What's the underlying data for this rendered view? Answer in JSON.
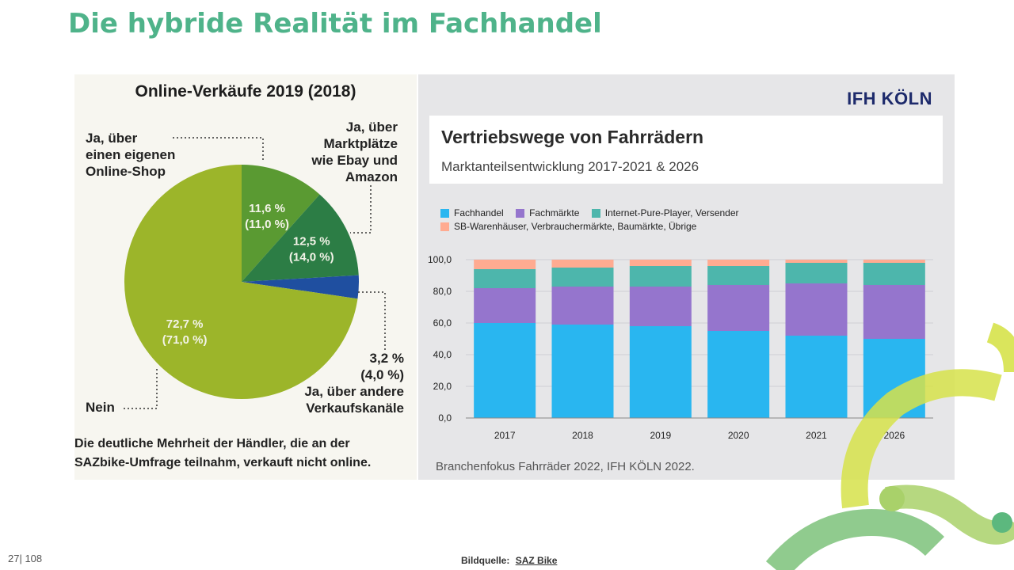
{
  "slide": {
    "title": "Die hybride Realität im Fachhandel",
    "page_number": "27| 108",
    "source_label": "Bildquelle:",
    "source_link": "SAZ Bike"
  },
  "chart_data": [
    {
      "type": "pie",
      "title": "Online-Verkäufe 2019 (2018)",
      "slices": [
        {
          "label": "Nein",
          "value_2019": 72.7,
          "value_2018": 71.0,
          "pct_text": "72,7 %",
          "prev_text": "(71,0 %)",
          "color": "#9cb52a"
        },
        {
          "label": "Ja, über einen eigenen Online-Shop",
          "value_2019": 11.6,
          "value_2018": 11.0,
          "pct_text": "11,6 %",
          "prev_text": "(11,0 %)",
          "color": "#5a9a32"
        },
        {
          "label": "Ja, über Marktplätze wie Ebay und Amazon",
          "value_2019": 12.5,
          "value_2018": 14.0,
          "pct_text": "12,5 %",
          "prev_text": "(14,0 %)",
          "color": "#2c7d45"
        },
        {
          "label": "Ja, über andere Verkaufskanäle",
          "value_2019": 3.2,
          "value_2018": 4.0,
          "pct_text": "3,2 %",
          "prev_text": "(4,0 %)",
          "color": "#1f4fa0"
        }
      ],
      "labels": {
        "shop": [
          "Ja, über",
          "einen eigenen",
          "Online-Shop"
        ],
        "market": [
          "Ja, über",
          "Marktplätze",
          "wie Ebay und",
          "Amazon"
        ],
        "other": [
          "3,2 %",
          "(4,0 %)",
          "Ja, über andere",
          "Verkaufskanäle"
        ],
        "no": "Nein"
      },
      "caption": [
        "Die deutliche Mehrheit der Händler, die an der",
        "SAZbike-Umfrage teilnahm, verkauft nicht online."
      ]
    },
    {
      "type": "bar",
      "stacked": true,
      "brand": "IFH KÖLN",
      "title": "Vertriebswege von Fahrrädern",
      "subtitle": "Marktanteilsentwicklung 2017-2021 & 2026",
      "categories": [
        "2017",
        "2018",
        "2019",
        "2020",
        "2021",
        "2026"
      ],
      "ylim": [
        0,
        100
      ],
      "yticks": [
        "0,0",
        "20,0",
        "40,0",
        "60,0",
        "80,0",
        "100,0"
      ],
      "series": [
        {
          "name": "Fachhandel",
          "color": "#29b6f0",
          "values": [
            60,
            59,
            58,
            55,
            52,
            50
          ]
        },
        {
          "name": "Fachmärkte",
          "color": "#9575cd",
          "values": [
            22,
            24,
            25,
            29,
            33,
            34
          ]
        },
        {
          "name": "Internet-Pure-Player, Versender",
          "color": "#4db6ac",
          "values": [
            12,
            12,
            13,
            12,
            13,
            14
          ]
        },
        {
          "name": "SB-Warenhäuser, Verbrauchermärkte, Baumärkte, Übrige",
          "color": "#ffab91",
          "values": [
            6,
            5,
            4,
            4,
            2,
            2
          ]
        }
      ],
      "footnote": "Branchenfokus Fahrräder 2022, IFH KÖLN 2022."
    }
  ],
  "decor": {
    "colors": [
      "#d6e24a",
      "#a9d16a",
      "#7cc27a",
      "#5cb87e"
    ]
  }
}
